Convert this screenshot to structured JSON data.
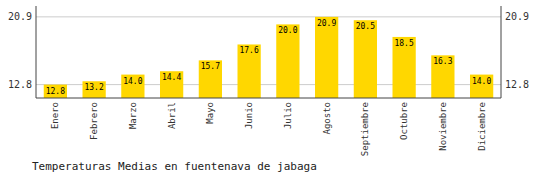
{
  "chart_data": {
    "type": "bar",
    "title": "Temperaturas Medias en fuentenava de jabaga",
    "categories": [
      "Enero",
      "Febrero",
      "Marzo",
      "Abril",
      "Mayo",
      "Junio",
      "Julio",
      "Agosto",
      "Septiembre",
      "Octubre",
      "Noviembre",
      "Diciembre"
    ],
    "values": [
      12.8,
      13.2,
      14.0,
      14.4,
      15.7,
      17.6,
      20.0,
      20.9,
      20.5,
      18.5,
      16.3,
      14.0
    ],
    "value_labels": [
      "12.8",
      "13.2",
      "14.0",
      "14.4",
      "15.7",
      "17.6",
      "20.0",
      "20.9",
      "20.5",
      "18.5",
      "16.3",
      "14.0"
    ],
    "color": "#FFD700",
    "ylim": [
      11.2,
      22.2
    ],
    "yticks": [
      12.8,
      20.9
    ],
    "grid": true,
    "data_labels": true
  }
}
